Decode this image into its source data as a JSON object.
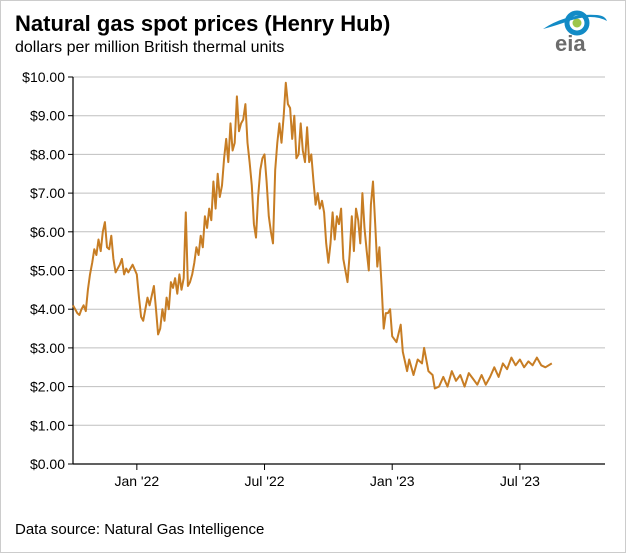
{
  "title": "Natural gas spot prices (Henry Hub)",
  "subtitle": "dollars per million British thermal units",
  "source": "Data source: Natural Gas Intelligence",
  "logo": {
    "primary": "#128bc6",
    "secondary": "#9ec64a",
    "text": "#6c6c6c",
    "label": "eia"
  },
  "chart": {
    "type": "line",
    "line_color": "#c77d24",
    "line_width": 2,
    "background": "#ffffff",
    "axis_color": "#000000",
    "grid_color": "#bfbfbf",
    "tick_font_size": 14,
    "ylim": [
      0,
      10
    ],
    "ytick_step": 1,
    "y_prefix": "$",
    "y_decimals": 2,
    "xlim": [
      0,
      25
    ],
    "xticks": [
      {
        "pos": 3,
        "label": "Jan '22"
      },
      {
        "pos": 9,
        "label": "Jul '22"
      },
      {
        "pos": 15,
        "label": "Jan '23"
      },
      {
        "pos": 21,
        "label": "Jul '23"
      }
    ],
    "series": [
      {
        "x": 0.0,
        "y": 4.1
      },
      {
        "x": 0.2,
        "y": 3.9
      },
      {
        "x": 0.3,
        "y": 3.85
      },
      {
        "x": 0.4,
        "y": 4.0
      },
      {
        "x": 0.5,
        "y": 4.1
      },
      {
        "x": 0.6,
        "y": 3.95
      },
      {
        "x": 0.7,
        "y": 4.5
      },
      {
        "x": 0.8,
        "y": 4.9
      },
      {
        "x": 0.9,
        "y": 5.2
      },
      {
        "x": 1.0,
        "y": 5.55
      },
      {
        "x": 1.1,
        "y": 5.4
      },
      {
        "x": 1.2,
        "y": 5.8
      },
      {
        "x": 1.3,
        "y": 5.5
      },
      {
        "x": 1.4,
        "y": 6.0
      },
      {
        "x": 1.5,
        "y": 6.25
      },
      {
        "x": 1.6,
        "y": 5.6
      },
      {
        "x": 1.7,
        "y": 5.55
      },
      {
        "x": 1.8,
        "y": 5.9
      },
      {
        "x": 1.9,
        "y": 5.3
      },
      {
        "x": 2.0,
        "y": 4.95
      },
      {
        "x": 2.2,
        "y": 5.15
      },
      {
        "x": 2.3,
        "y": 5.3
      },
      {
        "x": 2.4,
        "y": 4.9
      },
      {
        "x": 2.5,
        "y": 5.05
      },
      {
        "x": 2.6,
        "y": 4.95
      },
      {
        "x": 2.8,
        "y": 5.15
      },
      {
        "x": 3.0,
        "y": 4.9
      },
      {
        "x": 3.1,
        "y": 4.3
      },
      {
        "x": 3.2,
        "y": 3.8
      },
      {
        "x": 3.3,
        "y": 3.7
      },
      {
        "x": 3.5,
        "y": 4.3
      },
      {
        "x": 3.6,
        "y": 4.1
      },
      {
        "x": 3.8,
        "y": 4.6
      },
      {
        "x": 3.9,
        "y": 4.0
      },
      {
        "x": 4.0,
        "y": 3.35
      },
      {
        "x": 4.1,
        "y": 3.5
      },
      {
        "x": 4.2,
        "y": 4.0
      },
      {
        "x": 4.3,
        "y": 3.7
      },
      {
        "x": 4.4,
        "y": 4.3
      },
      {
        "x": 4.5,
        "y": 4.0
      },
      {
        "x": 4.6,
        "y": 4.7
      },
      {
        "x": 4.7,
        "y": 4.55
      },
      {
        "x": 4.8,
        "y": 4.8
      },
      {
        "x": 4.9,
        "y": 4.4
      },
      {
        "x": 5.0,
        "y": 4.9
      },
      {
        "x": 5.1,
        "y": 4.5
      },
      {
        "x": 5.2,
        "y": 4.8
      },
      {
        "x": 5.3,
        "y": 6.5
      },
      {
        "x": 5.4,
        "y": 4.6
      },
      {
        "x": 5.5,
        "y": 4.7
      },
      {
        "x": 5.6,
        "y": 4.9
      },
      {
        "x": 5.7,
        "y": 5.2
      },
      {
        "x": 5.8,
        "y": 5.6
      },
      {
        "x": 5.9,
        "y": 5.4
      },
      {
        "x": 6.0,
        "y": 5.9
      },
      {
        "x": 6.1,
        "y": 5.6
      },
      {
        "x": 6.2,
        "y": 6.4
      },
      {
        "x": 6.3,
        "y": 6.1
      },
      {
        "x": 6.4,
        "y": 6.6
      },
      {
        "x": 6.5,
        "y": 6.3
      },
      {
        "x": 6.6,
        "y": 7.3
      },
      {
        "x": 6.7,
        "y": 6.6
      },
      {
        "x": 6.8,
        "y": 7.5
      },
      {
        "x": 6.9,
        "y": 6.9
      },
      {
        "x": 7.0,
        "y": 7.2
      },
      {
        "x": 7.1,
        "y": 7.9
      },
      {
        "x": 7.2,
        "y": 8.4
      },
      {
        "x": 7.3,
        "y": 7.8
      },
      {
        "x": 7.4,
        "y": 8.8
      },
      {
        "x": 7.5,
        "y": 8.1
      },
      {
        "x": 7.6,
        "y": 8.3
      },
      {
        "x": 7.7,
        "y": 9.5
      },
      {
        "x": 7.8,
        "y": 8.6
      },
      {
        "x": 7.9,
        "y": 8.8
      },
      {
        "x": 8.0,
        "y": 8.9
      },
      {
        "x": 8.1,
        "y": 9.3
      },
      {
        "x": 8.2,
        "y": 8.3
      },
      {
        "x": 8.3,
        "y": 7.8
      },
      {
        "x": 8.4,
        "y": 7.2
      },
      {
        "x": 8.5,
        "y": 6.2
      },
      {
        "x": 8.6,
        "y": 5.85
      },
      {
        "x": 8.7,
        "y": 6.9
      },
      {
        "x": 8.8,
        "y": 7.6
      },
      {
        "x": 8.9,
        "y": 7.9
      },
      {
        "x": 9.0,
        "y": 8.0
      },
      {
        "x": 9.1,
        "y": 7.3
      },
      {
        "x": 9.2,
        "y": 6.4
      },
      {
        "x": 9.3,
        "y": 6.0
      },
      {
        "x": 9.4,
        "y": 5.7
      },
      {
        "x": 9.5,
        "y": 7.6
      },
      {
        "x": 9.6,
        "y": 8.3
      },
      {
        "x": 9.7,
        "y": 8.8
      },
      {
        "x": 9.8,
        "y": 8.3
      },
      {
        "x": 9.9,
        "y": 9.0
      },
      {
        "x": 10.0,
        "y": 9.85
      },
      {
        "x": 10.1,
        "y": 9.3
      },
      {
        "x": 10.2,
        "y": 9.2
      },
      {
        "x": 10.3,
        "y": 8.4
      },
      {
        "x": 10.4,
        "y": 9.0
      },
      {
        "x": 10.5,
        "y": 7.9
      },
      {
        "x": 10.6,
        "y": 8.0
      },
      {
        "x": 10.7,
        "y": 8.8
      },
      {
        "x": 10.8,
        "y": 8.1
      },
      {
        "x": 10.9,
        "y": 7.8
      },
      {
        "x": 11.0,
        "y": 8.7
      },
      {
        "x": 11.1,
        "y": 7.8
      },
      {
        "x": 11.2,
        "y": 8.0
      },
      {
        "x": 11.3,
        "y": 7.3
      },
      {
        "x": 11.4,
        "y": 6.7
      },
      {
        "x": 11.5,
        "y": 7.0
      },
      {
        "x": 11.6,
        "y": 6.6
      },
      {
        "x": 11.7,
        "y": 6.8
      },
      {
        "x": 11.8,
        "y": 6.5
      },
      {
        "x": 11.9,
        "y": 5.7
      },
      {
        "x": 12.0,
        "y": 5.2
      },
      {
        "x": 12.1,
        "y": 5.7
      },
      {
        "x": 12.2,
        "y": 6.5
      },
      {
        "x": 12.3,
        "y": 5.8
      },
      {
        "x": 12.4,
        "y": 6.4
      },
      {
        "x": 12.5,
        "y": 6.2
      },
      {
        "x": 12.6,
        "y": 6.6
      },
      {
        "x": 12.7,
        "y": 5.3
      },
      {
        "x": 12.8,
        "y": 5.0
      },
      {
        "x": 12.9,
        "y": 4.7
      },
      {
        "x": 13.0,
        "y": 5.4
      },
      {
        "x": 13.1,
        "y": 6.4
      },
      {
        "x": 13.2,
        "y": 5.5
      },
      {
        "x": 13.3,
        "y": 6.6
      },
      {
        "x": 13.4,
        "y": 6.3
      },
      {
        "x": 13.5,
        "y": 5.7
      },
      {
        "x": 13.6,
        "y": 7.0
      },
      {
        "x": 13.7,
        "y": 6.1
      },
      {
        "x": 13.8,
        "y": 5.5
      },
      {
        "x": 13.9,
        "y": 5.0
      },
      {
        "x": 14.0,
        "y": 6.7
      },
      {
        "x": 14.1,
        "y": 7.3
      },
      {
        "x": 14.2,
        "y": 6.2
      },
      {
        "x": 14.3,
        "y": 5.1
      },
      {
        "x": 14.4,
        "y": 5.6
      },
      {
        "x": 14.5,
        "y": 4.6
      },
      {
        "x": 14.6,
        "y": 3.5
      },
      {
        "x": 14.7,
        "y": 3.9
      },
      {
        "x": 14.8,
        "y": 3.9
      },
      {
        "x": 14.9,
        "y": 4.0
      },
      {
        "x": 15.0,
        "y": 3.3
      },
      {
        "x": 15.2,
        "y": 3.15
      },
      {
        "x": 15.4,
        "y": 3.6
      },
      {
        "x": 15.5,
        "y": 2.9
      },
      {
        "x": 15.7,
        "y": 2.4
      },
      {
        "x": 15.8,
        "y": 2.7
      },
      {
        "x": 16.0,
        "y": 2.3
      },
      {
        "x": 16.2,
        "y": 2.7
      },
      {
        "x": 16.4,
        "y": 2.6
      },
      {
        "x": 16.5,
        "y": 3.0
      },
      {
        "x": 16.7,
        "y": 2.4
      },
      {
        "x": 16.9,
        "y": 2.3
      },
      {
        "x": 17.0,
        "y": 1.95
      },
      {
        "x": 17.2,
        "y": 2.0
      },
      {
        "x": 17.4,
        "y": 2.25
      },
      {
        "x": 17.6,
        "y": 2.0
      },
      {
        "x": 17.8,
        "y": 2.4
      },
      {
        "x": 18.0,
        "y": 2.15
      },
      {
        "x": 18.2,
        "y": 2.3
      },
      {
        "x": 18.4,
        "y": 2.0
      },
      {
        "x": 18.6,
        "y": 2.35
      },
      {
        "x": 18.8,
        "y": 2.2
      },
      {
        "x": 19.0,
        "y": 2.05
      },
      {
        "x": 19.2,
        "y": 2.3
      },
      {
        "x": 19.4,
        "y": 2.05
      },
      {
        "x": 19.6,
        "y": 2.25
      },
      {
        "x": 19.8,
        "y": 2.5
      },
      {
        "x": 20.0,
        "y": 2.25
      },
      {
        "x": 20.2,
        "y": 2.6
      },
      {
        "x": 20.4,
        "y": 2.45
      },
      {
        "x": 20.6,
        "y": 2.75
      },
      {
        "x": 20.8,
        "y": 2.55
      },
      {
        "x": 21.0,
        "y": 2.7
      },
      {
        "x": 21.2,
        "y": 2.5
      },
      {
        "x": 21.4,
        "y": 2.65
      },
      {
        "x": 21.6,
        "y": 2.55
      },
      {
        "x": 21.8,
        "y": 2.75
      },
      {
        "x": 22.0,
        "y": 2.55
      },
      {
        "x": 22.2,
        "y": 2.5
      },
      {
        "x": 22.5,
        "y": 2.6
      }
    ]
  }
}
